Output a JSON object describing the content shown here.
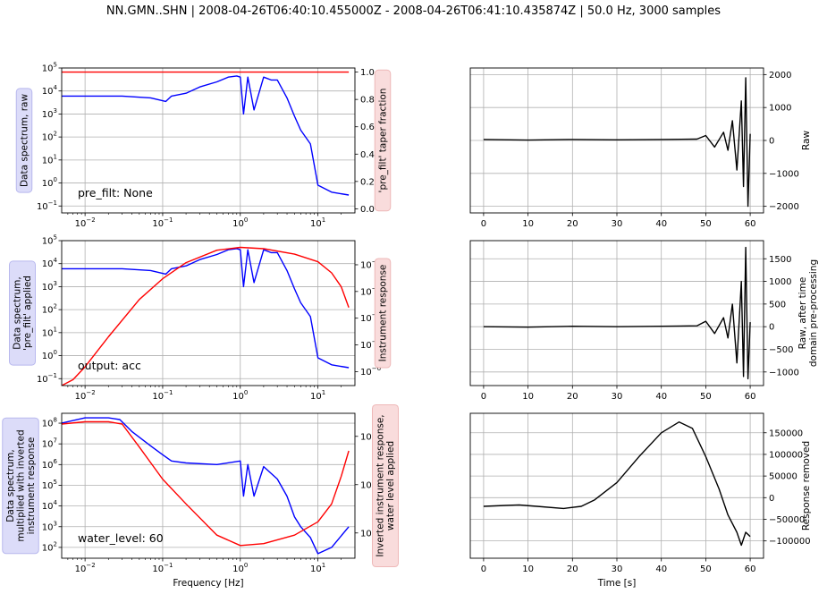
{
  "figure_title": "NN.GMN..SHN | 2008-04-26T06:40:10.455000Z - 2008-04-26T06:41:10.435874Z | 50.0 Hz, 3000 samples",
  "colors": {
    "data_spectrum": "#0000ff",
    "response": "#ff0000",
    "trace": "#000000",
    "grid": "#b0b0b0",
    "blue_box_fill": "#dcdcf9",
    "blue_box_edge": "#b8b8ee",
    "red_box_fill": "#f9dcdc",
    "red_box_edge": "#eeb8b8"
  },
  "chart_data": [
    {
      "type": "line",
      "scale": "loglog",
      "ylabel": "Data spectrum, raw",
      "y2label": "'pre_filt' taper fraction",
      "annotation": "pre_filt: None",
      "xlim": [
        0.005,
        30
      ],
      "ylim": [
        0.05,
        100000
      ],
      "y2lim": [
        -0.03,
        1.03
      ],
      "y2scale": "linear",
      "x_ticks": [
        "10^-2",
        "10^-1",
        "10^0",
        "10^1"
      ],
      "y_ticks": [
        "10^-1",
        "10^0",
        "10^1",
        "10^2",
        "10^3",
        "10^4",
        "10^5"
      ],
      "y2_ticks": [
        "0.0",
        "0.2",
        "0.4",
        "0.6",
        "0.8",
        "1.0"
      ],
      "series": [
        {
          "axis": "left",
          "color": "blue",
          "x": [
            0.005,
            0.03,
            0.07,
            0.11,
            0.13,
            0.2,
            0.3,
            0.5,
            0.7,
            0.9,
            1.0,
            1.1,
            1.25,
            1.5,
            2.0,
            2.5,
            3.0,
            4.0,
            5.0,
            6.0,
            8.0,
            10.0,
            15.0,
            25.0
          ],
          "y": [
            6000,
            6000,
            5000,
            3500,
            6000,
            8000,
            15000,
            25000,
            40000,
            45000,
            40000,
            1000,
            40000,
            1500,
            40000,
            30000,
            30000,
            5000,
            800,
            200,
            50,
            0.8,
            0.4,
            0.3
          ]
        },
        {
          "axis": "right",
          "color": "red",
          "x": [
            0.005,
            25.0
          ],
          "y": [
            1.0,
            1.0
          ]
        }
      ]
    },
    {
      "type": "line",
      "scale": "loglog",
      "ylabel": "Data spectrum,\n'pre_filt' applied",
      "y2label": "Instrument response",
      "y2scale": "log",
      "annotation": "output: acc",
      "xlim": [
        0.005,
        30
      ],
      "ylim": [
        0.05,
        100000
      ],
      "y2lim": [
        3e-07,
        0.08
      ],
      "x_ticks": [
        "10^-2",
        "10^-1",
        "10^0",
        "10^1"
      ],
      "y_ticks": [
        "10^-1",
        "10^0",
        "10^1",
        "10^2",
        "10^3",
        "10^4",
        "10^5"
      ],
      "y2_ticks": [
        "10^-6",
        "10^-5",
        "10^-4",
        "10^-3",
        "10^-2"
      ],
      "series": [
        {
          "axis": "left",
          "color": "blue",
          "x": [
            0.005,
            0.03,
            0.07,
            0.11,
            0.13,
            0.2,
            0.3,
            0.5,
            0.7,
            0.9,
            1.0,
            1.1,
            1.25,
            1.5,
            2.0,
            2.5,
            3.0,
            4.0,
            5.0,
            6.0,
            8.0,
            10.0,
            15.0,
            25.0
          ],
          "y": [
            6000,
            6000,
            5000,
            3500,
            6000,
            8000,
            15000,
            25000,
            40000,
            45000,
            40000,
            1000,
            40000,
            1500,
            40000,
            30000,
            30000,
            5000,
            800,
            200,
            50,
            0.8,
            0.4,
            0.3
          ]
        },
        {
          "axis": "right",
          "color": "red",
          "x": [
            0.005,
            0.007,
            0.01,
            0.02,
            0.05,
            0.1,
            0.2,
            0.5,
            1.0,
            2.0,
            5.0,
            10.0,
            15.0,
            20.0,
            25.0
          ],
          "y": [
            3e-07,
            5e-07,
            1.5e-06,
            2e-05,
            0.0005,
            0.003,
            0.012,
            0.035,
            0.045,
            0.04,
            0.025,
            0.013,
            0.005,
            0.0015,
            0.00025
          ]
        }
      ]
    },
    {
      "type": "line",
      "scale": "loglog",
      "ylabel": "Data spectrum,\nmultiplied with inverted\ninstrument response",
      "y2label": "Inverted instrument response,\nwater level applied",
      "y2scale": "log",
      "annotation": "water_level: 60",
      "xlim": [
        0.005,
        30
      ],
      "ylim": [
        30,
        300000000
      ],
      "y2lim": [
        30,
        30000
      ],
      "x_ticks": [
        "10^-2",
        "10^-1",
        "10^0",
        "10^1"
      ],
      "y_ticks": [
        "10^2",
        "10^3",
        "10^4",
        "10^5",
        "10^6",
        "10^7",
        "10^8"
      ],
      "y2_ticks": [
        "10^2",
        "10^3",
        "10^4"
      ],
      "xlabel": "Frequency [Hz]",
      "series": [
        {
          "axis": "left",
          "color": "blue",
          "x": [
            0.005,
            0.01,
            0.02,
            0.028,
            0.04,
            0.07,
            0.1,
            0.13,
            0.2,
            0.5,
            1.0,
            1.1,
            1.25,
            1.5,
            2.0,
            3.0,
            4.0,
            5.0,
            6.0,
            8.0,
            10.0,
            15.0,
            25.0
          ],
          "y": [
            100000000,
            180000000,
            180000000,
            150000000,
            40000000,
            8000000,
            3000000,
            1500000,
            1200000,
            1000000,
            1500000,
            30000,
            1000000,
            30000,
            800000,
            200000,
            30000,
            3000,
            1000,
            300,
            50,
            100,
            1000
          ]
        },
        {
          "axis": "right",
          "color": "red",
          "x": [
            0.005,
            0.01,
            0.02,
            0.03,
            0.05,
            0.1,
            0.2,
            0.5,
            1.0,
            2.0,
            5.0,
            10.0,
            15.0,
            20.0,
            25.0
          ],
          "y": [
            18000,
            20000,
            20000,
            18000,
            6000,
            1300,
            400,
            90,
            55,
            60,
            90,
            170,
            400,
            1500,
            5000
          ]
        }
      ]
    },
    {
      "type": "line",
      "ylabel": "Raw",
      "xlim": [
        -3,
        63
      ],
      "ylim": [
        -2200,
        2200
      ],
      "x_ticks": [
        "0",
        "10",
        "20",
        "30",
        "40",
        "50",
        "60"
      ],
      "y_ticks": [
        "−2000",
        "−1000",
        "0",
        "1000",
        "2000"
      ],
      "series": [
        {
          "color": "black",
          "x": [
            0,
            10,
            20,
            30,
            40,
            48,
            50,
            52,
            54,
            55,
            56,
            57,
            58,
            58.5,
            59,
            59.5,
            60
          ],
          "y": [
            30,
            10,
            30,
            20,
            30,
            40,
            150,
            -200,
            250,
            -300,
            600,
            -900,
            1200,
            -1400,
            1900,
            -2000,
            200
          ]
        }
      ]
    },
    {
      "type": "line",
      "ylabel": "Raw, after time\ndomain pre-processing",
      "xlim": [
        -3,
        63
      ],
      "ylim": [
        -1300,
        1900
      ],
      "x_ticks": [
        "0",
        "10",
        "20",
        "30",
        "40",
        "50",
        "60"
      ],
      "y_ticks": [
        "−1000",
        "−500",
        "0",
        "500",
        "1000",
        "1500"
      ],
      "series": [
        {
          "color": "black",
          "x": [
            0,
            10,
            20,
            30,
            40,
            48,
            50,
            52,
            54,
            55,
            56,
            57,
            58,
            58.5,
            59,
            59.5,
            60
          ],
          "y": [
            0,
            -10,
            10,
            0,
            10,
            20,
            120,
            -150,
            200,
            -250,
            500,
            -800,
            1000,
            -1100,
            1750,
            -1150,
            100
          ]
        }
      ]
    },
    {
      "type": "line",
      "ylabel": "Response removed",
      "xlabel": "Time [s]",
      "xlim": [
        -3,
        63
      ],
      "ylim": [
        -140000,
        195000
      ],
      "x_ticks": [
        "0",
        "10",
        "20",
        "30",
        "40",
        "50",
        "60"
      ],
      "y_ticks": [
        "−100000",
        "−50000",
        "0",
        "50000",
        "100000",
        "150000"
      ],
      "series": [
        {
          "color": "black",
          "x": [
            0,
            5,
            8,
            12,
            18,
            22,
            25,
            30,
            35,
            40,
            44,
            47,
            50,
            53,
            55,
            57,
            58,
            59,
            60
          ],
          "y": [
            -20000,
            -18000,
            -17000,
            -20000,
            -25000,
            -20000,
            -5000,
            35000,
            95000,
            150000,
            175000,
            160000,
            95000,
            20000,
            -40000,
            -80000,
            -110000,
            -80000,
            -90000
          ]
        }
      ]
    }
  ]
}
